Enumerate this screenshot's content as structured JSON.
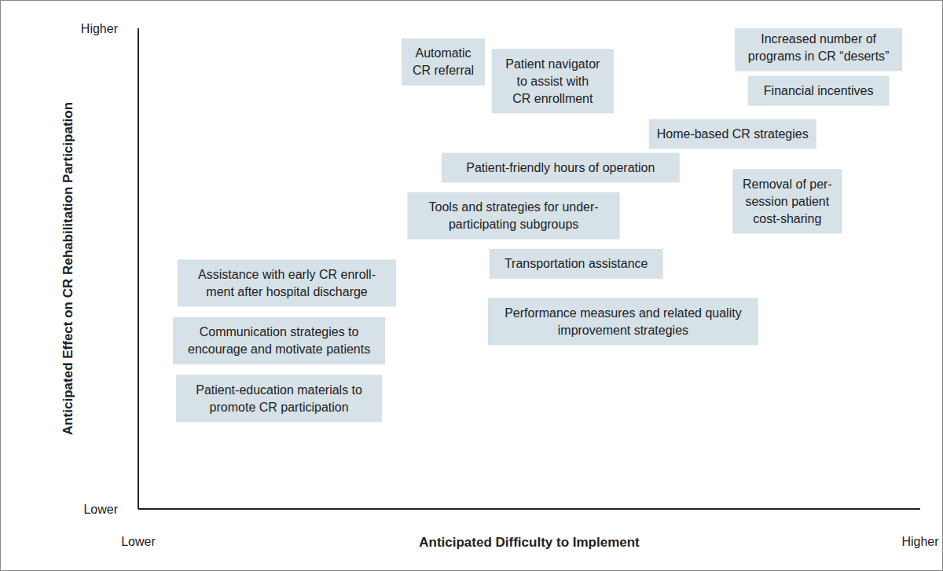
{
  "chart_data": {
    "type": "scatter",
    "x_label": "Anticipated Difficulty to Implement",
    "y_label": "Anticipated Effect on CR Rehabilitation Participation",
    "xlim": [
      0,
      10
    ],
    "ylim": [
      0,
      10
    ],
    "xticks": [
      {
        "value": 0,
        "label": "Lower"
      },
      {
        "value": 10,
        "label": "Higher"
      }
    ],
    "yticks": [
      {
        "value": 0,
        "label": "Lower"
      },
      {
        "value": 10,
        "label": "Higher"
      }
    ],
    "grid": false,
    "marker": "box",
    "color": "#d6e1e8",
    "points": [
      {
        "lines": [
          "Automatic",
          "CR referral"
        ],
        "x": 3.9,
        "y": 9.3
      },
      {
        "lines": [
          "Patient navigator",
          "to assist with",
          "CR enrollment"
        ],
        "x": 5.3,
        "y": 8.9
      },
      {
        "lines": [
          "Increased number of",
          "programs in CR “deserts”"
        ],
        "x": 8.7,
        "y": 9.6
      },
      {
        "lines": [
          "Financial incentives"
        ],
        "x": 8.7,
        "y": 8.7
      },
      {
        "lines": [
          "Home-based CR strategies"
        ],
        "x": 7.6,
        "y": 7.8
      },
      {
        "lines": [
          "Patient-friendly hours of operation"
        ],
        "x": 5.4,
        "y": 7.1
      },
      {
        "lines": [
          "Removal of per-",
          "session patient",
          "cost-sharing"
        ],
        "x": 8.3,
        "y": 6.4
      },
      {
        "lines": [
          "Tools and strategies for under-",
          "participating subgroups"
        ],
        "x": 4.8,
        "y": 6.1
      },
      {
        "lines": [
          "Transportation assistance"
        ],
        "x": 5.6,
        "y": 5.1
      },
      {
        "lines": [
          "Assistance with early CR enroll-",
          "ment after hospital discharge"
        ],
        "x": 1.9,
        "y": 4.7
      },
      {
        "lines": [
          "Performance measures and related quality",
          "improvement strategies"
        ],
        "x": 6.2,
        "y": 3.9
      },
      {
        "lines": [
          "Communication strategies to",
          "encourage and motivate patients"
        ],
        "x": 1.8,
        "y": 3.5
      },
      {
        "lines": [
          "Patient-education materials to",
          "promote CR participation"
        ],
        "x": 1.8,
        "y": 2.3
      }
    ]
  }
}
